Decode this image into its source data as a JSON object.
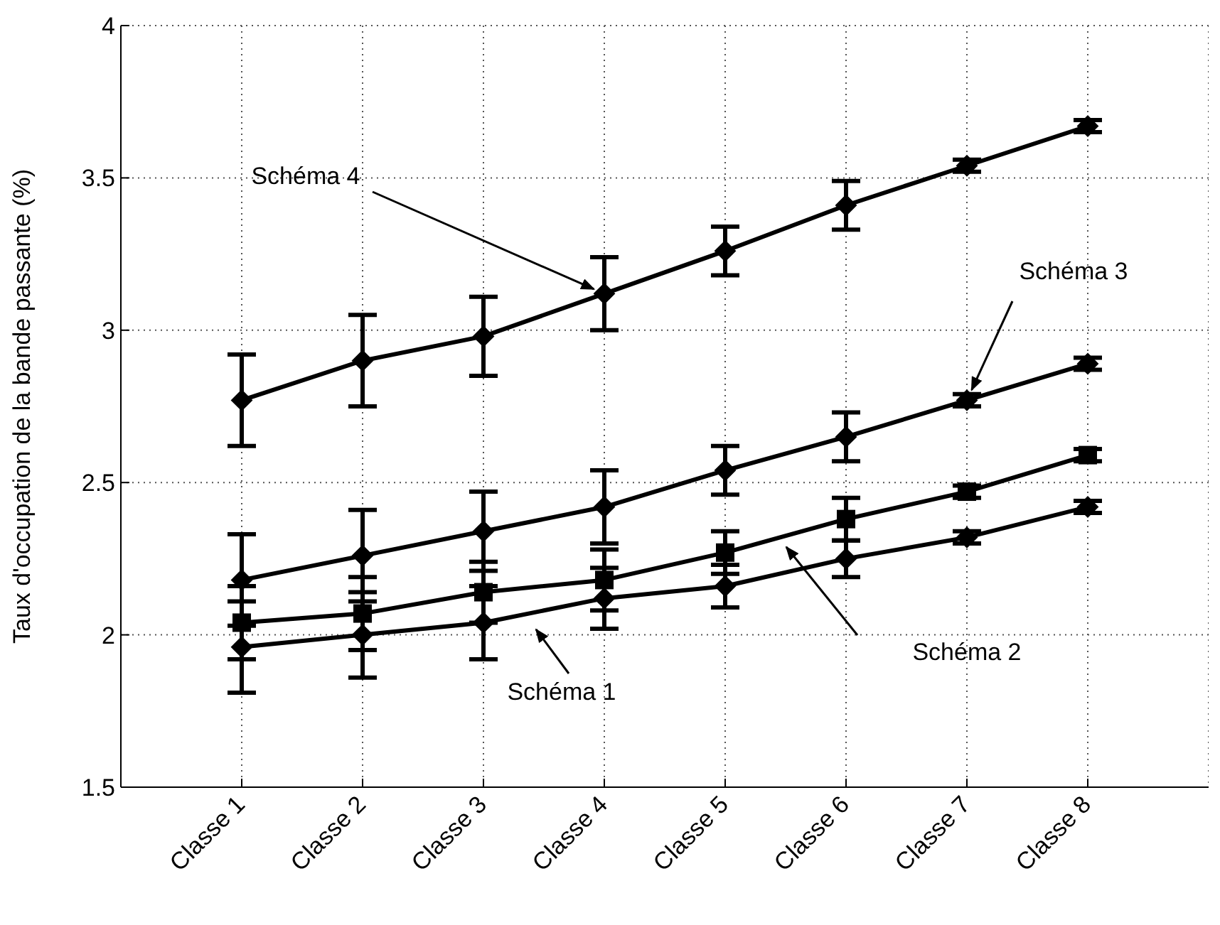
{
  "chart_data": {
    "type": "line",
    "ylabel": "Taux d'occupation de la bande passante (%)",
    "categories": [
      "Classe 1",
      "Classe 2",
      "Classe 3",
      "Classe 4",
      "Classe 5",
      "Classe 6",
      "Classe 7",
      "Classe 8"
    ],
    "ylim": [
      1.5,
      4
    ],
    "yticks": [
      1.5,
      2,
      2.5,
      3,
      3.5,
      4
    ],
    "grid": true,
    "line_style": "solid",
    "series": [
      {
        "color": "#000000",
        "marker": "diamond",
        "values": [
          1.96,
          2.0,
          2.04,
          2.12,
          2.16,
          2.25,
          2.32,
          2.42
        ],
        "errors": [
          0.15,
          0.14,
          0.12,
          0.1,
          0.07,
          0.06,
          0.02,
          0.02
        ]
      },
      {
        "color": "#000000",
        "marker": "square",
        "values": [
          2.04,
          2.07,
          2.14,
          2.18,
          2.27,
          2.38,
          2.47,
          2.59
        ],
        "errors": [
          0.12,
          0.12,
          0.1,
          0.1,
          0.07,
          0.07,
          0.02,
          0.02
        ]
      },
      {
        "color": "#000000",
        "marker": "diamond",
        "values": [
          2.18,
          2.26,
          2.34,
          2.42,
          2.54,
          2.65,
          2.77,
          2.89
        ],
        "errors": [
          0.15,
          0.15,
          0.13,
          0.12,
          0.08,
          0.08,
          0.02,
          0.02
        ]
      },
      {
        "color": "#000000",
        "marker": "diamond",
        "values": [
          2.77,
          2.9,
          2.98,
          3.12,
          3.26,
          3.41,
          3.54,
          3.67
        ],
        "errors": [
          0.15,
          0.15,
          0.13,
          0.12,
          0.08,
          0.08,
          0.02,
          0.02
        ]
      }
    ],
    "annotations": [
      "Schéma 1",
      "Schéma 2",
      {
        "text": "Schéma 3",
        "x": "Classe 7",
        "y": 2.77
      },
      {
        "text": "Schéma 4",
        "x": "Classe 4",
        "y": 3.12
      }
    ]
  }
}
